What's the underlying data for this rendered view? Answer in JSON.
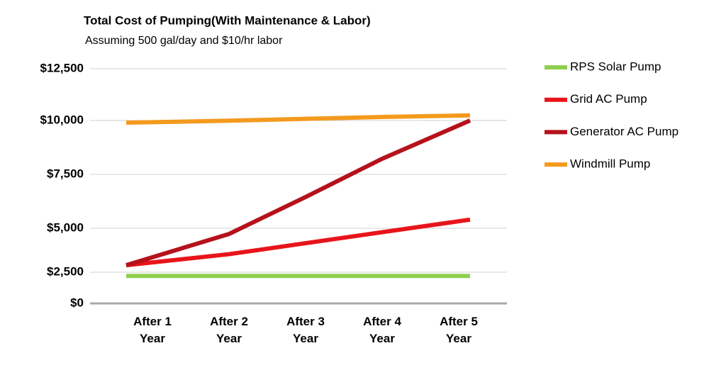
{
  "chart_data": {
    "type": "line",
    "title": "Total Cost of Pumping(With Maintenance & Labor)",
    "subtitle": "Assuming 500 gal/day and $10/hr labor",
    "categories": [
      "After 1 Year",
      "After 2 Year",
      "After 3 Year",
      "After 4 Year",
      "After 5 Year"
    ],
    "series": [
      {
        "name": "RPS Solar Pump",
        "color": "#8fcf4f",
        "values": [
          2200,
          2200,
          2200,
          2200,
          2200
        ]
      },
      {
        "name": "Grid AC Pump",
        "color": "#e8141b",
        "values": [
          2900,
          3525,
          4150,
          4775,
          5400
        ]
      },
      {
        "name": "Generator AC Pump",
        "color": "#b5121b",
        "values": [
          2900,
          4675,
          6450,
          8225,
          10000
        ]
      },
      {
        "name": "Windmill Pump",
        "color": "#f39a1e",
        "values": [
          9900,
          9990,
          10080,
          10170,
          10250
        ]
      }
    ],
    "ylim": [
      0,
      12500
    ],
    "yticks": [
      {
        "value": 0,
        "label": "$0"
      },
      {
        "value": 2500,
        "label": "$2,500"
      },
      {
        "value": 5000,
        "label": "$5,000"
      },
      {
        "value": 7500,
        "label": "$7,500"
      },
      {
        "value": 10000,
        "label": "$10,000"
      },
      {
        "value": 12500,
        "label": "$12,500"
      }
    ],
    "grid": true
  }
}
